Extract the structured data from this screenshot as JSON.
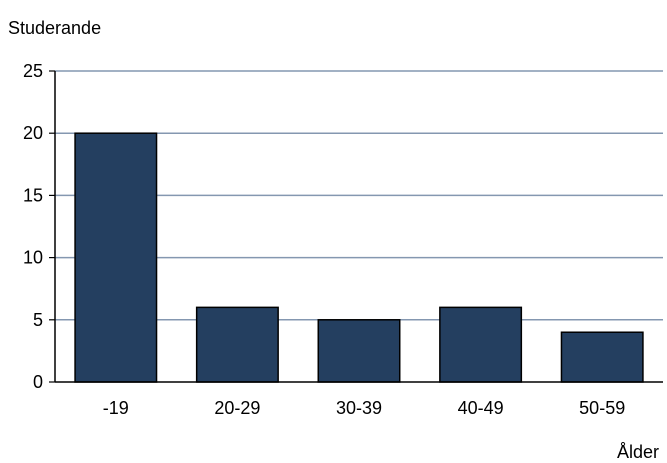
{
  "chart_data": {
    "type": "bar",
    "title": "",
    "ylabel": "Studerande",
    "xlabel": "Ålder",
    "categories": [
      "-19",
      "20-29",
      "30-39",
      "40-49",
      "50-59"
    ],
    "values": [
      20,
      6,
      5,
      6,
      4
    ],
    "ylim": [
      0,
      25
    ],
    "yticks": [
      0,
      5,
      10,
      15,
      20,
      25
    ],
    "grid": true,
    "legend": "none",
    "colors": {
      "bar_fill": "#243f60",
      "bar_stroke": "#000000",
      "grid": "#8497b0",
      "axis": "#000000"
    }
  }
}
